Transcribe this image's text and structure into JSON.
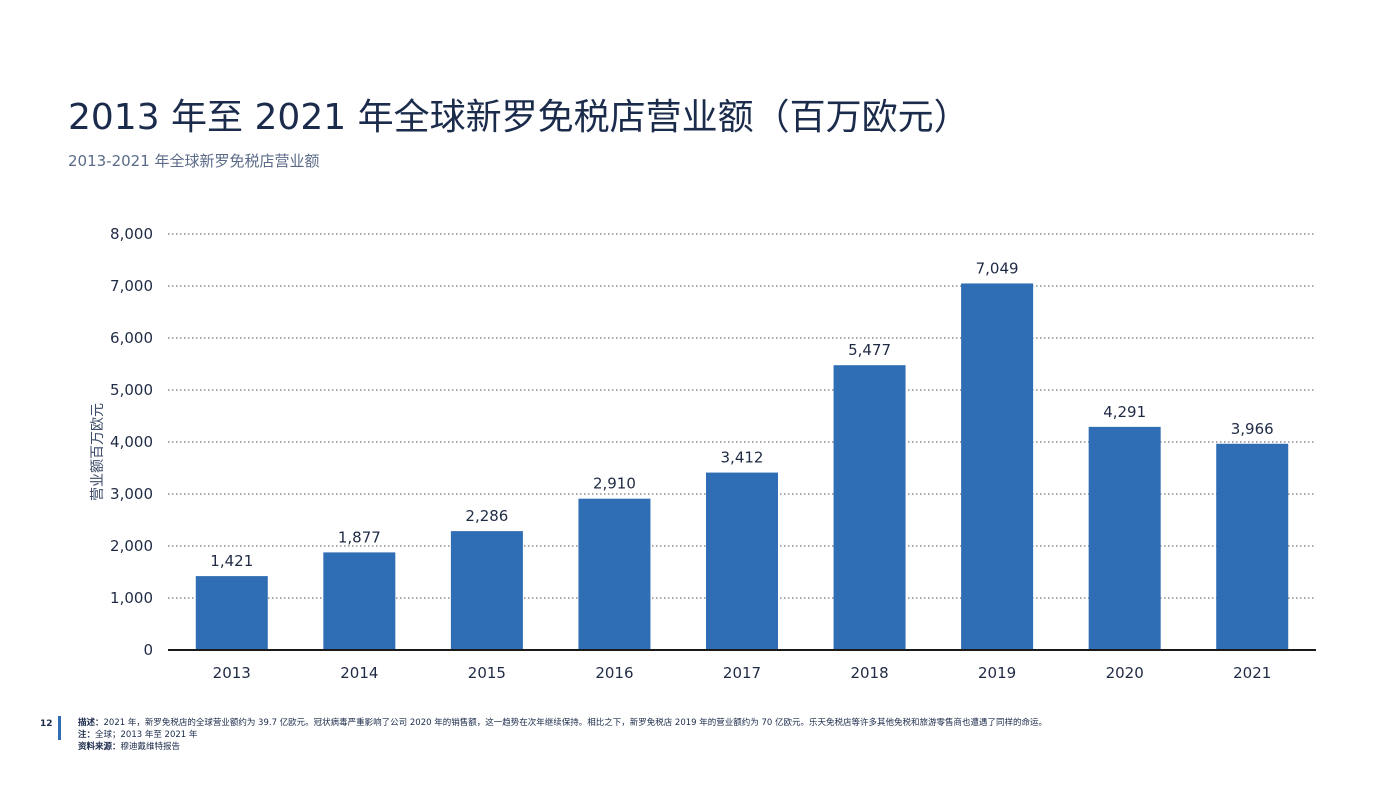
{
  "header": {
    "title": "2013 年至 2021 年全球新罗免税店营业额（百万欧元）",
    "subtitle": "2013-2021 年全球新罗免税店营业额"
  },
  "chart_data": {
    "type": "bar",
    "categories": [
      "2013",
      "2014",
      "2015",
      "2016",
      "2017",
      "2018",
      "2019",
      "2020",
      "2021"
    ],
    "values": [
      1421,
      1877,
      2286,
      2910,
      3412,
      5477,
      7049,
      4291,
      3966
    ],
    "value_labels": [
      "1,421",
      "1,877",
      "2,286",
      "2,910",
      "3,412",
      "5,477",
      "7,049",
      "4,291",
      "3,966"
    ],
    "ylabel": "营业额百万欧元",
    "ylim": [
      0,
      8000
    ],
    "yticks": [
      0,
      1000,
      2000,
      3000,
      4000,
      5000,
      6000,
      7000,
      8000
    ],
    "ytick_labels": [
      "0",
      "1,000",
      "2,000",
      "3,000",
      "4,000",
      "5,000",
      "6,000",
      "7,000",
      "8,000"
    ],
    "grid": true,
    "bar_color": "#2f6db5"
  },
  "footer": {
    "page_number": "12",
    "description_label": "描述：",
    "description_text": "2021 年，新罗免税店的全球营业额约为 39.7 亿欧元。冠状病毒严重影响了公司 2020 年的销售额，这一趋势在次年继续保持。相比之下，新罗免税店 2019 年的营业额约为 70 亿欧元。乐天免税店等许多其他免税和旅游零售商也遭遇了同样的命运。",
    "note_label": "注：",
    "note_text": "全球；2013 年至 2021 年",
    "source_label": "资料来源：",
    "source_text": "穆迪戴维特报告"
  }
}
